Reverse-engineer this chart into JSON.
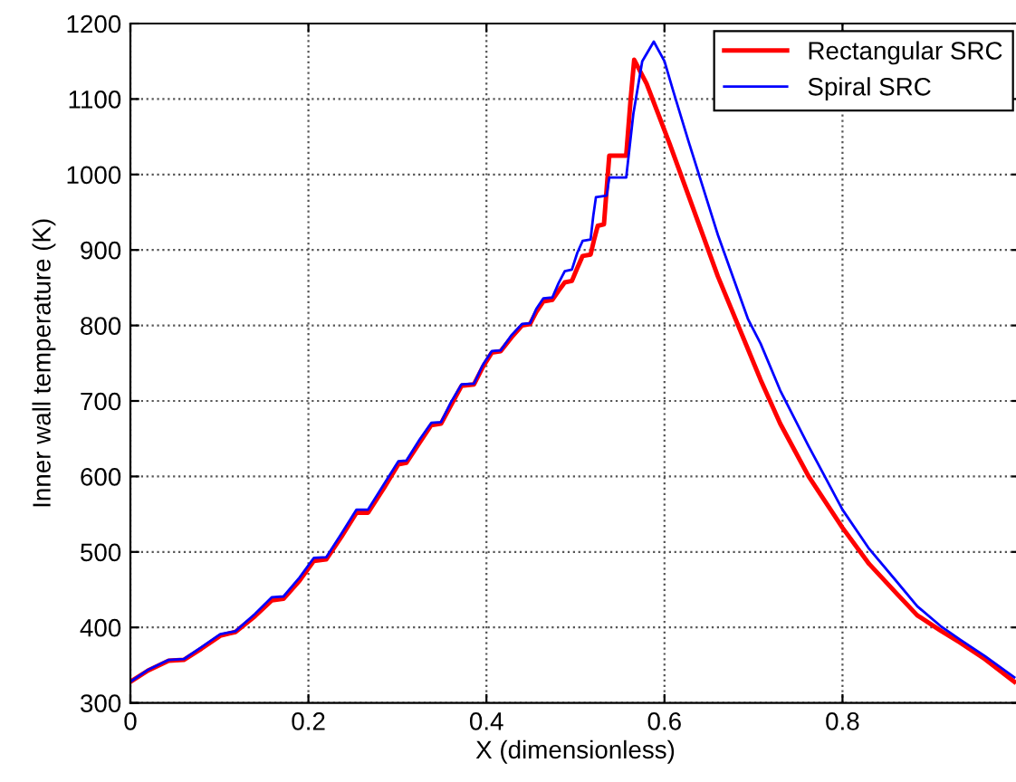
{
  "chart_data": {
    "type": "line",
    "xlabel": "X (dimensionless)",
    "ylabel": "Inner wall temperature (K)",
    "xlim": [
      0,
      1
    ],
    "xticks": [
      0,
      0.2,
      0.4,
      0.6,
      0.8
    ],
    "ylim": [
      300,
      1200
    ],
    "yticks": [
      300,
      400,
      500,
      600,
      700,
      800,
      900,
      1000,
      1100,
      1200
    ],
    "grid": true,
    "legend": "top right",
    "line_style": "solid",
    "marker": "none",
    "series": [
      {
        "name": "Rectangular SRC",
        "color": "#ff0000",
        "x": [
          0,
          0.02,
          0.043,
          0.06,
          0.08,
          0.101,
          0.118,
          0.14,
          0.159,
          0.172,
          0.19,
          0.206,
          0.22,
          0.237,
          0.254,
          0.267,
          0.285,
          0.301,
          0.31,
          0.325,
          0.338,
          0.349,
          0.36,
          0.372,
          0.386,
          0.396,
          0.406,
          0.416,
          0.428,
          0.44,
          0.449,
          0.456,
          0.464,
          0.474,
          0.481,
          0.488,
          0.496,
          0.502,
          0.508,
          0.517,
          0.521,
          0.525,
          0.532,
          0.535,
          0.538,
          0.557,
          0.562,
          0.566,
          0.58,
          0.606,
          0.627,
          0.66,
          0.694,
          0.708,
          0.73,
          0.762,
          0.8,
          0.83,
          0.86,
          0.884,
          0.91,
          0.932,
          0.96,
          0.993
        ],
        "values": [
          328,
          343,
          356,
          357,
          372,
          389,
          394,
          415,
          436,
          438,
          462,
          488,
          490,
          520,
          552,
          552,
          585,
          616,
          618,
          645,
          668,
          670,
          694,
          720,
          722,
          745,
          764,
          766,
          784,
          800,
          802,
          818,
          832,
          834,
          846,
          857,
          859,
          876,
          892,
          894,
          914,
          932,
          934,
          980,
          1025,
          1025,
          1100,
          1152,
          1120,
          1040,
          972,
          865,
          768,
          728,
          670,
          600,
          532,
          484,
          446,
          416,
          396,
          380,
          358,
          328
        ]
      },
      {
        "name": "Spiral SRC",
        "color": "#0000ff",
        "x": [
          0,
          0.02,
          0.043,
          0.06,
          0.08,
          0.101,
          0.118,
          0.14,
          0.159,
          0.172,
          0.19,
          0.206,
          0.22,
          0.237,
          0.254,
          0.267,
          0.285,
          0.301,
          0.31,
          0.325,
          0.338,
          0.349,
          0.36,
          0.372,
          0.386,
          0.396,
          0.406,
          0.416,
          0.428,
          0.44,
          0.449,
          0.456,
          0.464,
          0.474,
          0.481,
          0.488,
          0.496,
          0.502,
          0.508,
          0.517,
          0.52,
          0.523,
          0.535,
          0.538,
          0.557,
          0.565,
          0.575,
          0.588,
          0.6,
          0.61,
          0.627,
          0.66,
          0.694,
          0.708,
          0.73,
          0.762,
          0.8,
          0.83,
          0.86,
          0.884,
          0.91,
          0.932,
          0.96,
          0.993
        ],
        "values": [
          328,
          344,
          357,
          358,
          374,
          391,
          395,
          418,
          440,
          441,
          466,
          492,
          493,
          524,
          556,
          556,
          590,
          620,
          621,
          649,
          671,
          672,
          698,
          722,
          723,
          748,
          766,
          767,
          787,
          802,
          803,
          822,
          836,
          837,
          856,
          872,
          874,
          896,
          912,
          914,
          945,
          970,
          972,
          996,
          996,
          1080,
          1150,
          1176,
          1150,
          1110,
          1044,
          920,
          808,
          776,
          714,
          640,
          556,
          504,
          462,
          428,
          402,
          384,
          362,
          334
        ]
      }
    ]
  }
}
